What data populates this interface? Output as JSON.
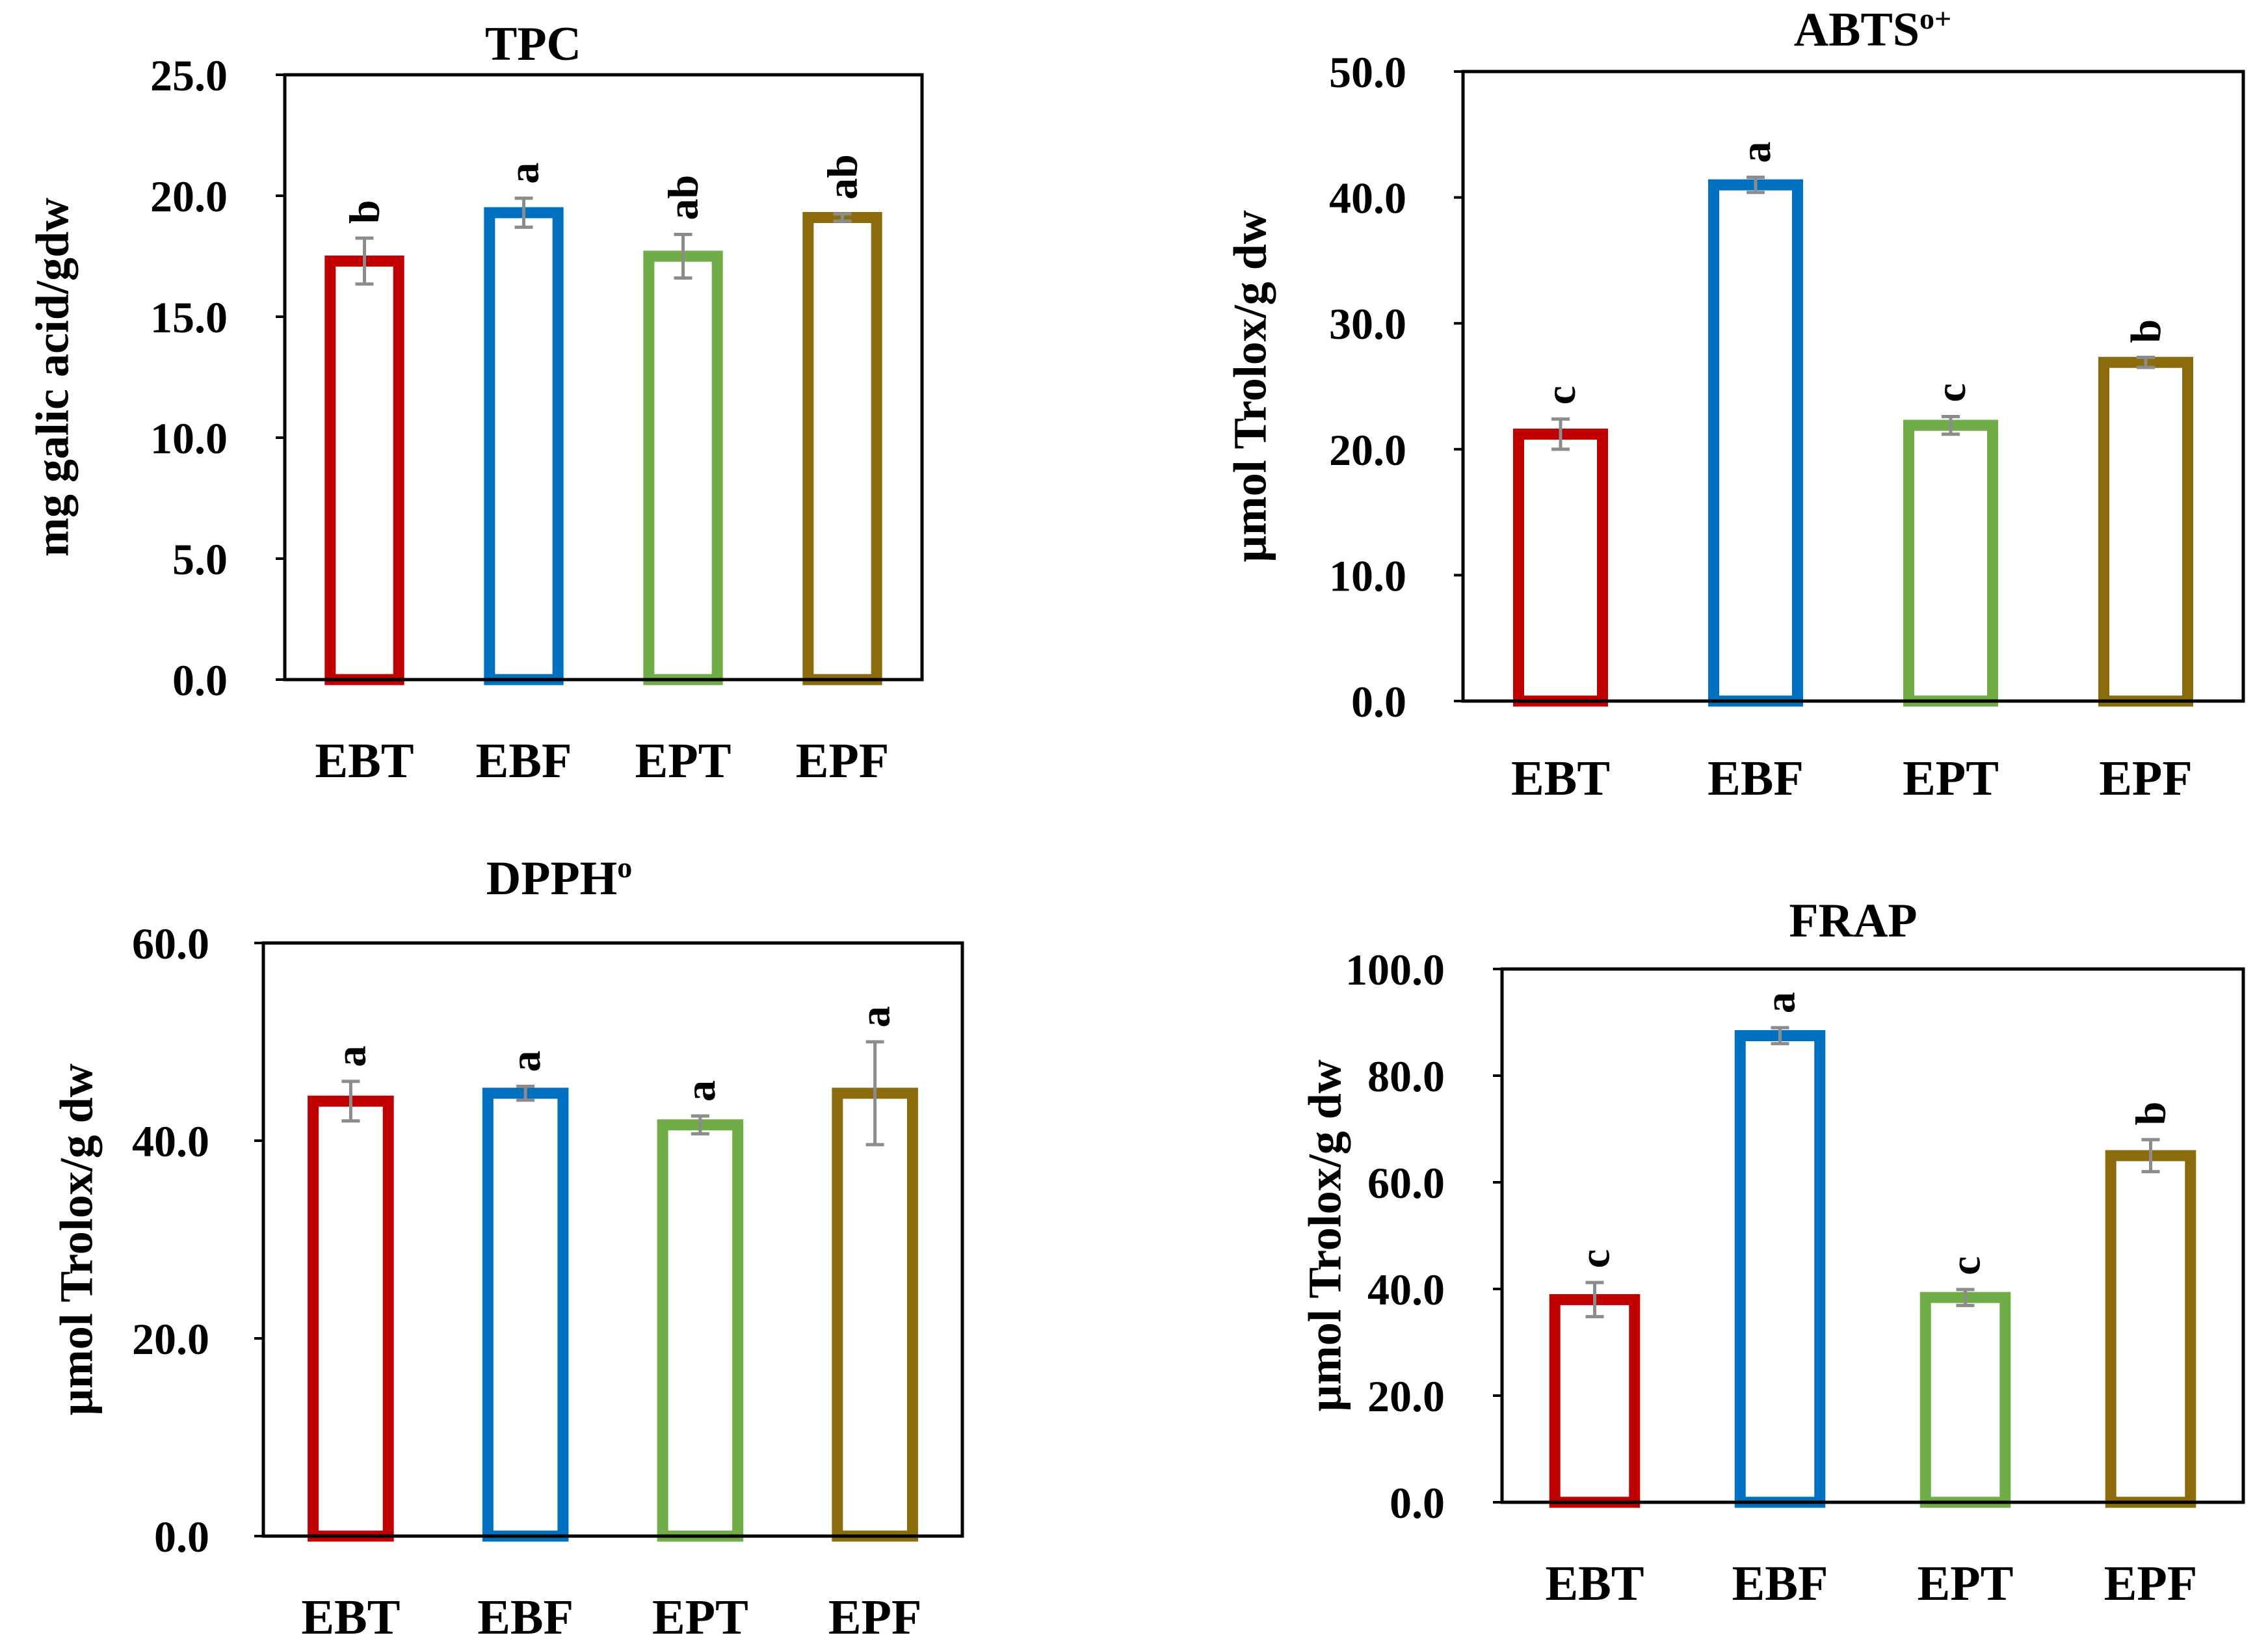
{
  "colors": {
    "EBT": "#c00000",
    "EBF": "#0070c0",
    "EPT": "#70ad47",
    "EPF": "#8b6b0b",
    "error_bar": "#8c8c8c"
  },
  "chart_data": [
    {
      "id": "tpc",
      "type": "bar",
      "title": "TPC",
      "title_sup": "",
      "ylabel": "mg galic acid/gdw",
      "xlabel": "",
      "ylim": [
        0,
        25
      ],
      "yticks": [
        "0.0",
        "5.0",
        "10.0",
        "15.0",
        "20.0",
        "25.0"
      ],
      "ytick_values": [
        0,
        5,
        10,
        15,
        20,
        25
      ],
      "categories": [
        "EBT",
        "EBF",
        "EPT",
        "EPF"
      ],
      "values": [
        17.3,
        19.3,
        17.5,
        19.1
      ],
      "errors": [
        0.95,
        0.6,
        0.9,
        0.15
      ],
      "significance": [
        "b",
        "a",
        "ab",
        "ab"
      ]
    },
    {
      "id": "abts",
      "type": "bar",
      "title": "ABTS",
      "title_sup": "o+",
      "ylabel": "µmol Trolox/g dw",
      "xlabel": "",
      "ylim": [
        0,
        50
      ],
      "yticks": [
        "0.0",
        "10.0",
        "20.0",
        "30.0",
        "40.0",
        "50.0"
      ],
      "ytick_values": [
        0,
        10,
        20,
        30,
        40,
        50
      ],
      "categories": [
        "EBT",
        "EBF",
        "EPT",
        "EPF"
      ],
      "values": [
        21.2,
        41.0,
        21.9,
        26.9
      ],
      "errors": [
        1.2,
        0.6,
        0.7,
        0.4
      ],
      "significance": [
        "c",
        "a",
        "c",
        "b"
      ]
    },
    {
      "id": "dpph",
      "type": "bar",
      "title": "DPPH",
      "title_sup": "o",
      "ylabel": "µmol Trolox/g dw",
      "xlabel": "",
      "ylim": [
        0,
        60
      ],
      "yticks": [
        "0.0",
        "20.0",
        "40.0",
        "60.0"
      ],
      "ytick_values": [
        0,
        20,
        40,
        60
      ],
      "categories": [
        "EBT",
        "EBF",
        "EPT",
        "EPF"
      ],
      "values": [
        44.0,
        44.8,
        41.6,
        44.8
      ],
      "errors": [
        2.0,
        0.7,
        0.9,
        5.2
      ],
      "significance": [
        "a",
        "a",
        "a",
        "a"
      ]
    },
    {
      "id": "frap",
      "type": "bar",
      "title": "FRAP",
      "title_sup": "",
      "ylabel": "µmol Trolox/g dw",
      "xlabel": "",
      "ylim": [
        0,
        100
      ],
      "yticks": [
        "0.0",
        "20.0",
        "40.0",
        "60.0",
        "80.0",
        "100.0"
      ],
      "ytick_values": [
        0,
        20,
        40,
        60,
        80,
        100
      ],
      "categories": [
        "EBT",
        "EBF",
        "EPT",
        "EPF"
      ],
      "values": [
        38.0,
        87.5,
        38.4,
        65.0
      ],
      "errors": [
        3.2,
        1.5,
        1.5,
        3.0
      ],
      "significance": [
        "c",
        "a",
        "c",
        "b"
      ]
    }
  ]
}
